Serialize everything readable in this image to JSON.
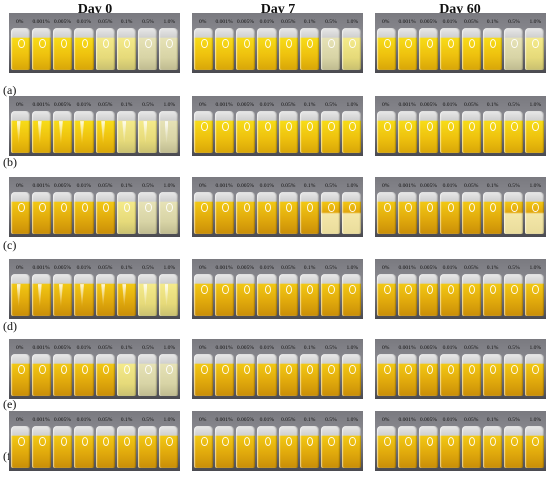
{
  "days": [
    "Day 0",
    "Day 7",
    "Day 60"
  ],
  "row_labels": [
    "(a)",
    "(b)",
    "(c)",
    "(d)",
    "(e)",
    "(f)"
  ],
  "concentrations": [
    "0%",
    "0.001%",
    "0.005%",
    "0.01%",
    "0.05%",
    "0.1%",
    "0.5%",
    "1.0%"
  ],
  "vial_appearance": {
    "a": [
      [
        "bright",
        "bright",
        "bright",
        "bright",
        "pale",
        "pale",
        "cloudy",
        "cloudy"
      ],
      [
        "bright",
        "bright",
        "bright",
        "bright",
        "bright",
        "bright",
        "cloudy",
        "pale"
      ],
      [
        "bright",
        "bright",
        "bright",
        "bright",
        "bright",
        "bright",
        "cloudy",
        "pale"
      ]
    ],
    "b": [
      [
        "bright",
        "bright",
        "bright",
        "bright",
        "bright",
        "pale",
        "pale",
        "cloudy"
      ],
      [
        "bright",
        "bright",
        "bright",
        "bright",
        "bright",
        "bright",
        "bright",
        "bright"
      ],
      [
        "bright",
        "bright",
        "bright",
        "bright",
        "bright",
        "bright",
        "bright",
        "bright"
      ]
    ],
    "c": [
      [
        "gold",
        "gold",
        "gold",
        "gold",
        "gold",
        "pale",
        "cloudy",
        "cloudy"
      ],
      [
        "gold",
        "gold",
        "gold",
        "gold",
        "gold",
        "gold",
        "split",
        "split"
      ],
      [
        "gold",
        "gold",
        "gold",
        "gold",
        "gold",
        "gold",
        "split",
        "split"
      ]
    ],
    "d": [
      [
        "gold",
        "gold",
        "gold",
        "gold",
        "gold",
        "gold",
        "pale",
        "pale"
      ],
      [
        "gold",
        "gold",
        "gold",
        "gold",
        "gold",
        "gold",
        "gold",
        "gold"
      ],
      [
        "gold",
        "gold",
        "gold",
        "gold",
        "gold",
        "gold",
        "gold",
        "gold"
      ]
    ],
    "e": [
      [
        "gold",
        "gold",
        "gold",
        "gold",
        "gold",
        "pale",
        "cloudy",
        "cloudy"
      ],
      [
        "gold",
        "gold",
        "gold",
        "gold",
        "gold",
        "gold",
        "gold",
        "gold"
      ],
      [
        "gold",
        "gold",
        "gold",
        "gold",
        "gold",
        "gold",
        "gold",
        "gold"
      ]
    ],
    "f": [
      [
        "gold",
        "gold",
        "gold",
        "gold",
        "gold",
        "gold",
        "gold",
        "gold"
      ],
      [
        "gold",
        "gold",
        "gold",
        "gold",
        "gold",
        "gold",
        "gold",
        "gold"
      ],
      [
        "gold",
        "gold",
        "gold",
        "gold",
        "gold",
        "gold",
        "gold",
        "gold"
      ]
    ]
  }
}
